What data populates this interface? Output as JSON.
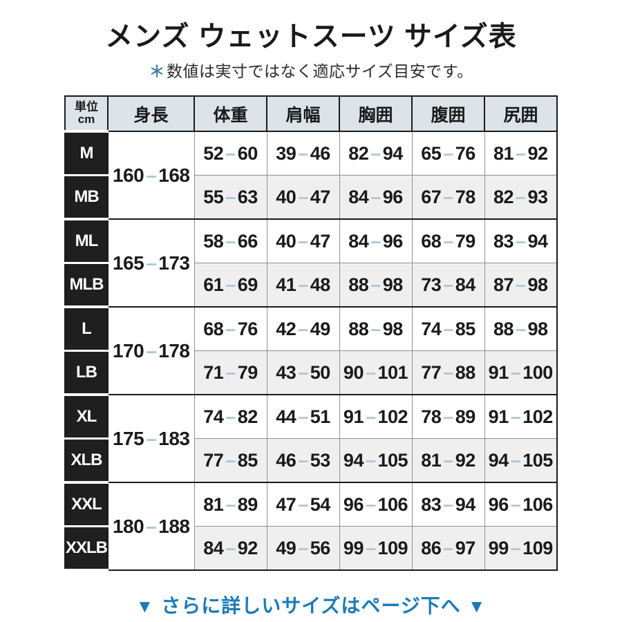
{
  "header": {
    "title": "メンズ ウェットスーツ サイズ表",
    "note_mark": "＊",
    "note": "数値は実寸ではなく適応サイズ目安です。"
  },
  "table": {
    "unit_label_top": "単位",
    "unit_label_bottom": "cm",
    "columns": [
      "身長",
      "体重",
      "肩幅",
      "胸囲",
      "腹囲",
      "尻囲"
    ],
    "groups": [
      {
        "height": "160-168",
        "rows": [
          {
            "size": "M",
            "values": [
              "52-60",
              "39-46",
              "82-94",
              "65-76",
              "81-92"
            ]
          },
          {
            "size": "MB",
            "values": [
              "55-63",
              "40-47",
              "84-96",
              "67-78",
              "82-93"
            ]
          }
        ]
      },
      {
        "height": "165-173",
        "rows": [
          {
            "size": "ML",
            "values": [
              "58-66",
              "40-47",
              "84-96",
              "68-79",
              "83-94"
            ]
          },
          {
            "size": "MLB",
            "values": [
              "61-69",
              "41-48",
              "88-98",
              "73-84",
              "87-98"
            ]
          }
        ]
      },
      {
        "height": "170-178",
        "rows": [
          {
            "size": "L",
            "values": [
              "68-76",
              "42-49",
              "88-98",
              "74-85",
              "88-98"
            ]
          },
          {
            "size": "LB",
            "values": [
              "71-79",
              "43-50",
              "90-101",
              "77-88",
              "91-100"
            ]
          }
        ]
      },
      {
        "height": "175-183",
        "rows": [
          {
            "size": "XL",
            "values": [
              "74-82",
              "44-51",
              "91-102",
              "78-89",
              "91-102"
            ]
          },
          {
            "size": "XLB",
            "values": [
              "77-85",
              "46-53",
              "94-105",
              "81-92",
              "94-105"
            ]
          }
        ]
      },
      {
        "height": "180-188",
        "rows": [
          {
            "size": "XXL",
            "values": [
              "81-89",
              "47-54",
              "96-106",
              "83-94",
              "96-106"
            ]
          },
          {
            "size": "XXLB",
            "values": [
              "84-92",
              "49-56",
              "99-109",
              "86-97",
              "99-109"
            ]
          }
        ]
      }
    ]
  },
  "footer": {
    "arrow": "▼",
    "label": "さらに詳しいサイズはページ下へ"
  },
  "colors": {
    "accent_blue": "#1b7ab8",
    "asterisk_blue": "#4380a5",
    "dash_blue": "#a9c6d8",
    "header_bg": "#dce4ea",
    "size_label_bg": "#1f1f1f",
    "row_alt_bg": "#efefef",
    "border_dark": "#1a1a1a",
    "border_gray": "#909090"
  }
}
